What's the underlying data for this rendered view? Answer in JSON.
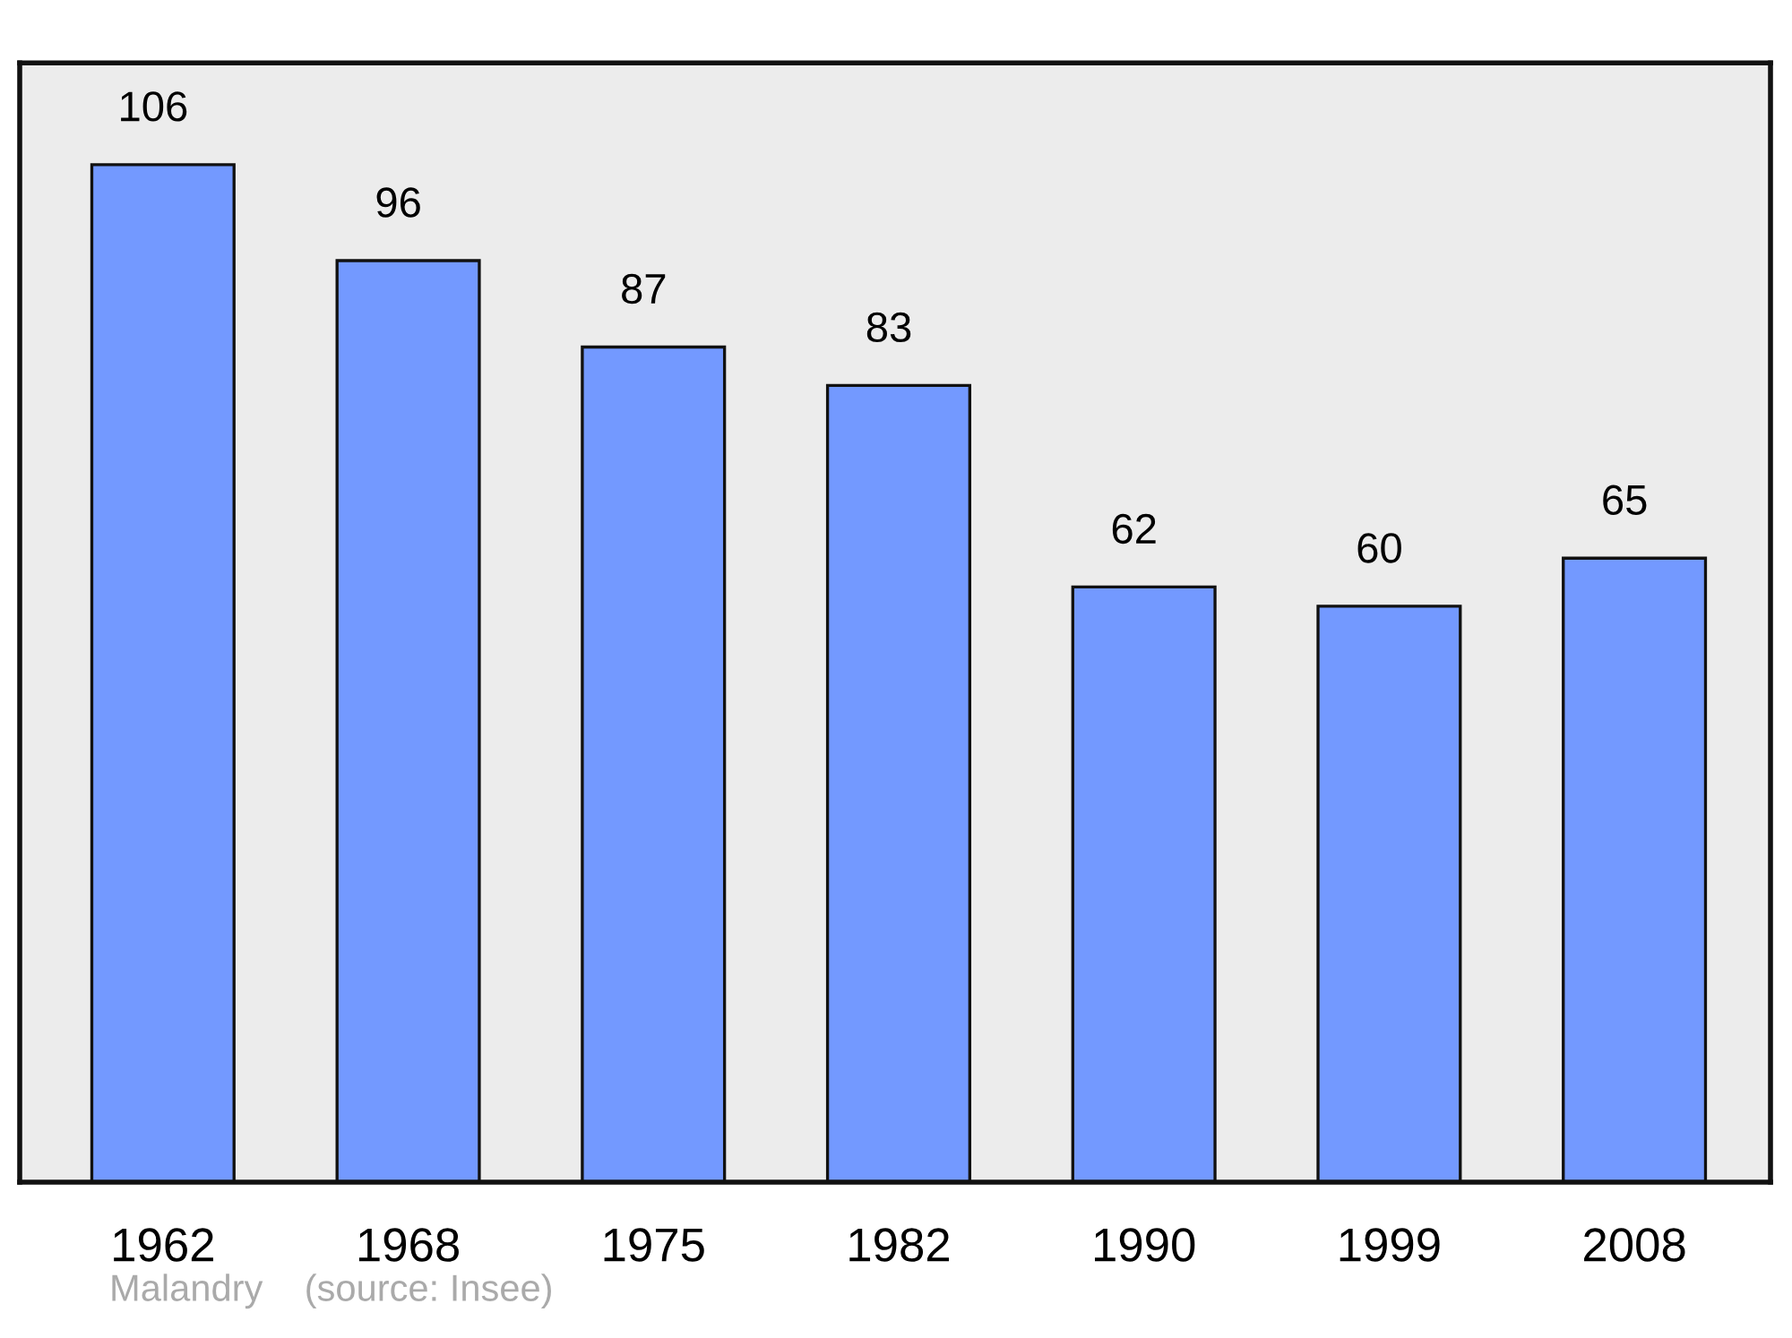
{
  "chart_data": {
    "type": "bar",
    "categories": [
      "1962",
      "1968",
      "1975",
      "1982",
      "1990",
      "1999",
      "2008"
    ],
    "values": [
      106,
      96,
      87,
      83,
      62,
      60,
      65
    ],
    "color": "#7399ff",
    "ylim": [
      0,
      116.6
    ],
    "tick_labels": "x",
    "data_labels": true,
    "grid": false,
    "legend": false,
    "annotations": [
      "Malandry    (source: Insee)"
    ]
  }
}
